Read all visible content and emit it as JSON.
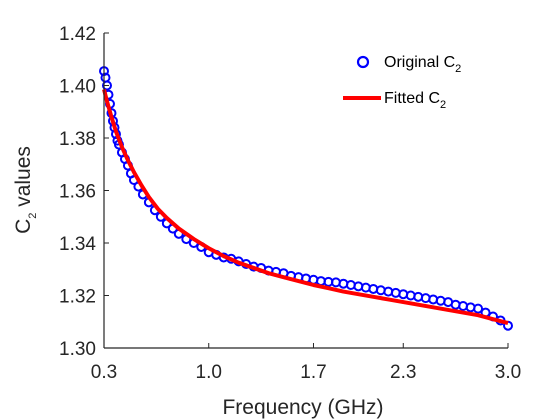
{
  "chart_data": {
    "type": "scatter",
    "xlabel": "Frequency (GHz)",
    "ylabel_main": "C",
    "ylabel_sub": "2",
    "ylabel_rest": " values",
    "xlim": [
      0.3,
      3.0
    ],
    "ylim": [
      1.3,
      1.42
    ],
    "x_ticks": [
      0.3,
      1.0,
      1.7,
      2.3,
      3.0
    ],
    "x_tick_labels": [
      "0.3",
      "1.0",
      "1.7",
      "2.3",
      "3.0"
    ],
    "y_ticks": [
      1.3,
      1.32,
      1.34,
      1.36,
      1.38,
      1.4,
      1.42
    ],
    "y_tick_labels": [
      "1.30",
      "1.32",
      "1.34",
      "1.36",
      "1.38",
      "1.40",
      "1.42"
    ],
    "grid": false,
    "legend_position": "top-right",
    "series": [
      {
        "name_main": "Original C",
        "name_sub": "2",
        "style": "markers",
        "color": "#0000ff",
        "x": [
          0.3,
          0.31,
          0.32,
          0.33,
          0.34,
          0.35,
          0.36,
          0.37,
          0.38,
          0.39,
          0.4,
          0.42,
          0.44,
          0.46,
          0.48,
          0.5,
          0.53,
          0.56,
          0.6,
          0.64,
          0.68,
          0.72,
          0.76,
          0.8,
          0.85,
          0.9,
          0.95,
          1.0,
          1.05,
          1.1,
          1.15,
          1.2,
          1.25,
          1.3,
          1.35,
          1.4,
          1.45,
          1.5,
          1.55,
          1.6,
          1.65,
          1.7,
          1.75,
          1.8,
          1.85,
          1.9,
          1.95,
          2.0,
          2.05,
          2.1,
          2.15,
          2.2,
          2.25,
          2.3,
          2.35,
          2.4,
          2.45,
          2.5,
          2.55,
          2.6,
          2.65,
          2.7,
          2.75,
          2.8,
          2.85,
          2.9,
          2.95,
          3.0
        ],
        "y": [
          1.4055,
          1.403,
          1.4,
          1.3965,
          1.393,
          1.3895,
          1.3865,
          1.384,
          1.3815,
          1.379,
          1.3775,
          1.3745,
          1.372,
          1.3695,
          1.3665,
          1.364,
          1.3615,
          1.3585,
          1.3555,
          1.3525,
          1.35,
          1.3475,
          1.3455,
          1.3435,
          1.3415,
          1.34,
          1.3385,
          1.3365,
          1.3355,
          1.3345,
          1.334,
          1.333,
          1.332,
          1.331,
          1.3305,
          1.3295,
          1.329,
          1.3285,
          1.3275,
          1.327,
          1.3265,
          1.326,
          1.3255,
          1.3252,
          1.325,
          1.3245,
          1.324,
          1.3235,
          1.323,
          1.3225,
          1.322,
          1.3215,
          1.321,
          1.3205,
          1.32,
          1.3195,
          1.319,
          1.3185,
          1.318,
          1.3175,
          1.3165,
          1.316,
          1.3155,
          1.315,
          1.3135,
          1.312,
          1.3105,
          1.3085
        ]
      },
      {
        "name_main": "Fitted C",
        "name_sub": "2",
        "style": "line",
        "color": "#ff0000",
        "x": [
          0.3,
          0.32,
          0.35,
          0.38,
          0.42,
          0.46,
          0.5,
          0.55,
          0.6,
          0.66,
          0.72,
          0.8,
          0.9,
          1.0,
          1.1,
          1.2,
          1.3,
          1.4,
          1.5,
          1.6,
          1.7,
          1.8,
          1.9,
          2.0,
          2.1,
          2.2,
          2.3,
          2.4,
          2.5,
          2.6,
          2.7,
          2.8,
          2.9,
          3.0
        ],
        "y": [
          1.3985,
          1.394,
          1.388,
          1.3825,
          1.3765,
          1.3715,
          1.367,
          1.362,
          1.3575,
          1.353,
          1.3495,
          1.3455,
          1.3415,
          1.338,
          1.335,
          1.3325,
          1.3305,
          1.3285,
          1.327,
          1.3255,
          1.324,
          1.3228,
          1.3215,
          1.3205,
          1.3195,
          1.3185,
          1.3175,
          1.3165,
          1.3155,
          1.3145,
          1.3135,
          1.3125,
          1.311,
          1.3095
        ]
      }
    ]
  }
}
